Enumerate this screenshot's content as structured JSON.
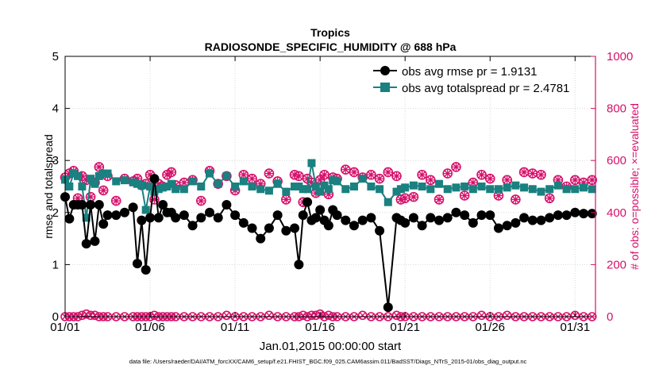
{
  "chart_data": {
    "type": "line",
    "title": "Tropics",
    "subtitle": "RADIOSONDE_SPECIFIC_HUMIDITY @ 688 hPa",
    "xlabel": "Jan.01,2015 00:00:00 start",
    "ylabel_left": "rmse and totalspread",
    "ylabel_right": "# of obs: o=possible; ×=evaluated",
    "footer": "data file: /Users/raeder/DAI/ATM_forcXX/CAM6_setup/f.e21.FHIST_BGC.f09_025.CAM6assim.011/BadSST/Diags_NTrS_2015-01/obs_diag_output.nc",
    "xlim": [
      1,
      32.2
    ],
    "ylim_left": [
      0,
      5
    ],
    "ylim_right": [
      0,
      1000
    ],
    "x_ticks": [
      1,
      6,
      11,
      16,
      21,
      26,
      31
    ],
    "x_tick_labels": [
      "01/01",
      "01/06",
      "01/11",
      "01/16",
      "01/21",
      "01/26",
      "01/31"
    ],
    "y_ticks_left": [
      0,
      1,
      2,
      3,
      4,
      5
    ],
    "y_ticks_right": [
      0,
      200,
      400,
      600,
      800,
      1000
    ],
    "colors": {
      "rmse": "#000000",
      "spread": "#1a8080",
      "obs": "#d6106a",
      "axis": "#000000"
    },
    "legend": {
      "position": "top-right",
      "entries": [
        "obs avg rmse pr = 1.9131",
        "obs avg totalspread pr = 2.4781"
      ]
    },
    "series": [
      {
        "name": "obs avg rmse",
        "axis": "left",
        "x": [
          1.0,
          1.25,
          1.5,
          1.75,
          2.0,
          2.25,
          2.5,
          2.75,
          3.0,
          3.25,
          3.5,
          4.0,
          4.5,
          5.0,
          5.25,
          5.5,
          5.75,
          6.0,
          6.25,
          6.5,
          6.75,
          7.0,
          7.25,
          7.5,
          8.0,
          8.5,
          9.0,
          9.5,
          10.0,
          10.5,
          11.0,
          11.5,
          12.0,
          12.5,
          13.0,
          13.5,
          14.0,
          14.5,
          14.75,
          15.0,
          15.25,
          15.5,
          15.75,
          16.0,
          16.25,
          16.5,
          16.75,
          17.0,
          17.5,
          18.0,
          18.5,
          19.0,
          19.5,
          20.0,
          20.5,
          20.75,
          21.0,
          21.5,
          22.0,
          22.5,
          23.0,
          23.5,
          24.0,
          24.5,
          25.0,
          25.5,
          26.0,
          26.5,
          27.0,
          27.5,
          28.0,
          28.5,
          29.0,
          29.5,
          30.0,
          30.5,
          31.0,
          31.5,
          32.0
        ],
        "values": [
          2.3,
          1.88,
          2.15,
          2.15,
          2.15,
          1.4,
          2.15,
          1.45,
          2.15,
          1.78,
          1.95,
          1.95,
          2.0,
          2.1,
          1.02,
          1.85,
          0.9,
          1.9,
          2.65,
          1.9,
          2.15,
          2.0,
          2.0,
          1.9,
          1.95,
          1.75,
          1.9,
          2.0,
          1.9,
          2.15,
          1.95,
          1.8,
          1.7,
          1.5,
          1.7,
          1.95,
          1.65,
          1.7,
          1.0,
          1.95,
          2.2,
          1.85,
          1.9,
          2.05,
          1.85,
          1.75,
          2.05,
          1.95,
          1.85,
          1.75,
          1.85,
          1.9,
          1.65,
          0.18,
          1.9,
          1.85,
          1.8,
          1.9,
          1.75,
          1.9,
          1.85,
          1.9,
          2.0,
          1.95,
          1.8,
          1.95,
          1.95,
          1.7,
          1.75,
          1.8,
          1.9,
          1.85,
          1.85,
          1.9,
          1.95,
          1.95,
          2.0,
          1.98,
          1.98
        ],
        "mean": 1.9131
      },
      {
        "name": "obs avg totalspread",
        "axis": "left",
        "x": [
          1.0,
          1.25,
          1.5,
          1.75,
          2.0,
          2.25,
          2.5,
          2.75,
          3.0,
          3.25,
          3.5,
          4.0,
          4.5,
          5.0,
          5.25,
          5.5,
          5.75,
          6.0,
          6.25,
          6.5,
          6.75,
          7.0,
          7.25,
          7.5,
          8.0,
          8.5,
          9.0,
          9.5,
          10.0,
          10.5,
          11.0,
          11.5,
          12.0,
          12.5,
          13.0,
          13.5,
          14.0,
          14.5,
          14.75,
          15.0,
          15.25,
          15.5,
          15.75,
          16.0,
          16.25,
          16.5,
          16.75,
          17.0,
          17.5,
          18.0,
          18.5,
          19.0,
          19.5,
          20.0,
          20.5,
          20.75,
          21.0,
          21.5,
          22.0,
          22.5,
          23.0,
          23.5,
          24.0,
          24.5,
          25.0,
          25.5,
          26.0,
          26.5,
          27.0,
          27.5,
          28.0,
          28.5,
          29.0,
          29.5,
          30.0,
          30.5,
          31.0,
          31.5,
          32.0
        ],
        "values": [
          2.63,
          2.5,
          2.75,
          2.7,
          2.5,
          1.9,
          2.65,
          2.55,
          2.7,
          2.75,
          2.75,
          2.6,
          2.62,
          2.58,
          2.55,
          2.52,
          2.05,
          2.5,
          2.4,
          2.45,
          2.48,
          2.5,
          2.55,
          2.45,
          2.45,
          2.6,
          2.5,
          2.75,
          2.55,
          2.7,
          2.5,
          2.6,
          2.5,
          2.45,
          2.42,
          2.55,
          2.4,
          2.5,
          2.5,
          2.45,
          2.45,
          2.95,
          2.5,
          2.4,
          2.52,
          2.45,
          2.62,
          2.6,
          2.45,
          2.5,
          2.65,
          2.5,
          2.45,
          2.2,
          2.4,
          2.45,
          2.48,
          2.52,
          2.5,
          2.45,
          2.55,
          2.45,
          2.48,
          2.5,
          2.45,
          2.5,
          2.45,
          2.45,
          2.48,
          2.52,
          2.48,
          2.45,
          2.4,
          2.45,
          2.52,
          2.45,
          2.45,
          2.48,
          2.45
        ],
        "mean": 2.4781
      },
      {
        "name": "obs possible",
        "axis": "right",
        "marker": "o",
        "x": [
          1.0,
          1.25,
          1.5,
          1.75,
          2.0,
          2.25,
          2.5,
          2.75,
          3.0,
          3.25,
          3.5,
          4.0,
          4.5,
          5.0,
          5.25,
          5.5,
          5.75,
          6.0,
          6.25,
          6.5,
          6.75,
          7.0,
          7.25,
          7.5,
          8.0,
          8.5,
          9.0,
          9.5,
          10.0,
          10.5,
          11.0,
          11.5,
          12.0,
          12.5,
          13.0,
          13.5,
          14.0,
          14.5,
          14.75,
          15.0,
          15.25,
          15.5,
          15.75,
          16.0,
          16.25,
          16.5,
          16.75,
          17.0,
          17.5,
          18.0,
          18.5,
          19.0,
          19.5,
          20.0,
          20.5,
          20.75,
          21.0,
          21.5,
          22.0,
          22.5,
          23.0,
          23.5,
          24.0,
          24.5,
          25.0,
          25.5,
          26.0,
          26.5,
          27.0,
          27.5,
          28.0,
          28.5,
          29.0,
          29.5,
          30.0,
          30.5,
          31.0,
          31.5,
          32.0
        ],
        "values": [
          535,
          550,
          560,
          455,
          540,
          525,
          460,
          515,
          575,
          485,
          540,
          445,
          530,
          520,
          530,
          505,
          510,
          545,
          450,
          510,
          500,
          545,
          555,
          505,
          515,
          525,
          445,
          560,
          510,
          540,
          485,
          545,
          530,
          510,
          550,
          520,
          450,
          545,
          540,
          440,
          530,
          515,
          475,
          525,
          545,
          470,
          535,
          530,
          565,
          555,
          535,
          545,
          530,
          555,
          540,
          450,
          455,
          460,
          545,
          525,
          450,
          550,
          575,
          465,
          515,
          545,
          530,
          465,
          525,
          450,
          555,
          550,
          545,
          455,
          525,
          500,
          525,
          515,
          525
        ],
        "possible_near_zero": [
          0,
          0,
          0,
          0,
          5,
          10,
          5,
          5,
          0,
          0,
          0,
          0,
          0,
          0,
          0,
          0,
          0,
          0,
          5,
          0,
          0,
          0,
          0,
          0,
          0,
          0,
          0,
          0,
          0,
          5,
          0,
          0,
          0,
          0,
          5,
          0,
          0,
          0,
          0,
          5,
          0,
          5,
          5,
          10,
          0,
          5,
          0,
          0,
          0,
          0,
          5,
          0,
          0,
          0,
          5,
          0,
          0,
          0,
          0,
          0,
          0,
          0,
          0,
          0,
          0,
          5,
          0,
          0,
          5,
          0,
          0,
          0,
          0,
          0,
          0,
          0,
          5,
          0,
          0
        ]
      },
      {
        "name": "obs evaluated",
        "axis": "right",
        "marker": "×"
      }
    ]
  }
}
